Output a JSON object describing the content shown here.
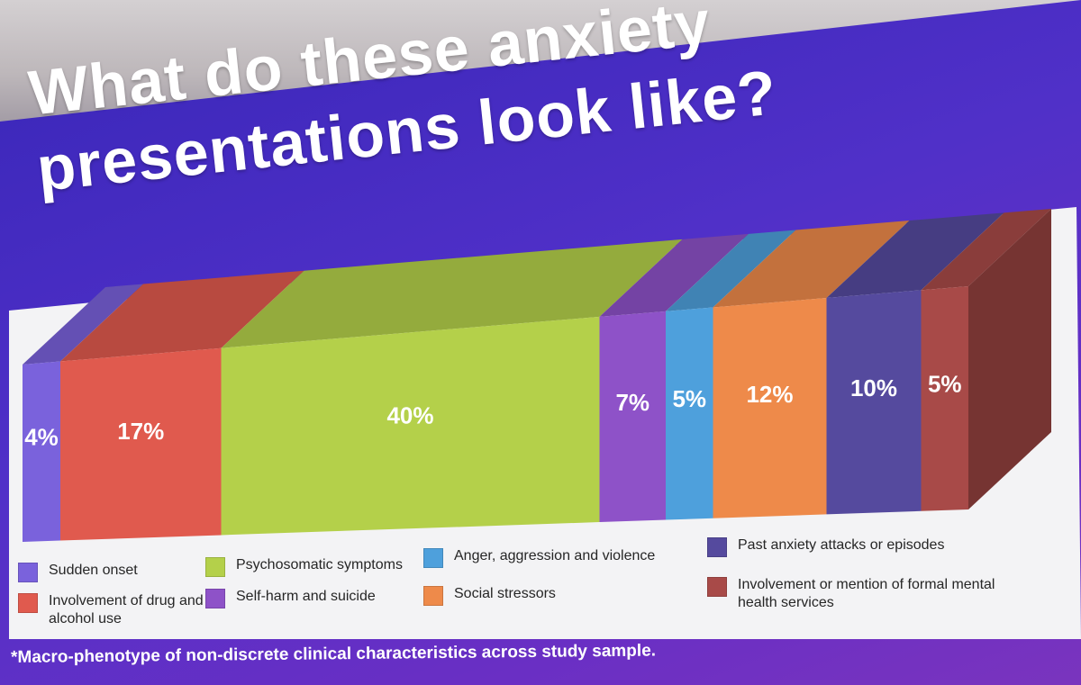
{
  "slide": {
    "title_line1": "What do these anxiety",
    "title_line2": "presentations look like?",
    "footnote": "*Macro-phenotype of non-discrete clinical characteristics across study sample."
  },
  "chart_data": {
    "type": "bar",
    "stacked": true,
    "orientation": "horizontal-100-percent",
    "three_d": true,
    "title": "",
    "categories": [
      "Sudden onset",
      "Involvement of drug and alcohol use",
      "Psychosomatic symptoms",
      "Self-harm and suicide",
      "Anger, aggression and violence",
      "Social stressors",
      "Past anxiety attacks or episodes",
      "Involvement or mention of formal mental health services"
    ],
    "values": [
      4,
      17,
      40,
      7,
      5,
      12,
      10,
      5
    ],
    "data_labels": [
      "4%",
      "17%",
      "40%",
      "7%",
      "5%",
      "12%",
      "10%",
      "5%"
    ],
    "colors": [
      "#7a62dc",
      "#e05a4e",
      "#b4d04a",
      "#8e52c8",
      "#4ea0dc",
      "#ee8a4a",
      "#554a9e",
      "#a84a48"
    ],
    "legend_placement": "bottom"
  },
  "legend": {
    "items": [
      {
        "label": "Sudden onset",
        "color": "#7a62dc"
      },
      {
        "label": "Involvement of drug and alcohol use",
        "color": "#e05a4e"
      },
      {
        "label": "Psychosomatic symptoms",
        "color": "#b4d04a"
      },
      {
        "label": "Self-harm and suicide",
        "color": "#8e52c8"
      },
      {
        "label": "Anger, aggression and violence",
        "color": "#4ea0dc"
      },
      {
        "label": "Social stressors",
        "color": "#ee8a4a"
      },
      {
        "label": "Past anxiety attacks or episodes",
        "color": "#554a9e"
      },
      {
        "label": "Involvement or mention of formal mental health services",
        "color": "#a84a48"
      }
    ]
  }
}
